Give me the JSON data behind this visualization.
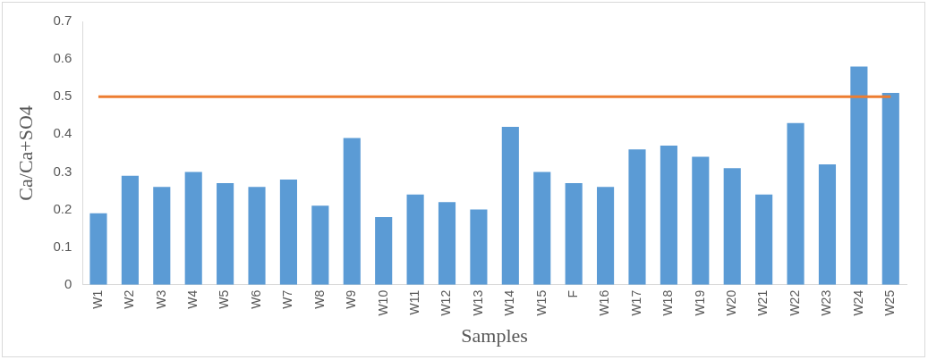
{
  "chart_data": {
    "type": "bar",
    "xlabel": "Samples",
    "ylabel": "Ca/Ca+SO4",
    "categories": [
      "W1",
      "W2",
      "W3",
      "W4",
      "W5",
      "W6",
      "W7",
      "W8",
      "W9",
      "W10",
      "W11",
      "W12",
      "W13",
      "W14",
      "W15",
      "F",
      "W16",
      "W17",
      "W18",
      "W19",
      "W20",
      "W21",
      "W22",
      "W23",
      "W24",
      "W25"
    ],
    "values": [
      0.19,
      0.29,
      0.26,
      0.3,
      0.27,
      0.26,
      0.28,
      0.21,
      0.39,
      0.18,
      0.24,
      0.22,
      0.2,
      0.42,
      0.3,
      0.27,
      0.26,
      0.36,
      0.37,
      0.34,
      0.31,
      0.24,
      0.43,
      0.32,
      0.58,
      0.51
    ],
    "color": "#5b9bd5",
    "ylim": [
      0,
      0.7
    ],
    "yticks": [
      {
        "value": 0,
        "label": "0"
      },
      {
        "value": 0.1,
        "label": "0.1"
      },
      {
        "value": 0.2,
        "label": "0.2"
      },
      {
        "value": 0.3,
        "label": "0.3"
      },
      {
        "value": 0.4,
        "label": "0.4"
      },
      {
        "value": 0.5,
        "label": "0.5"
      },
      {
        "value": 0.6,
        "label": "0.6"
      },
      {
        "value": 0.7,
        "label": "0.7"
      }
    ],
    "ref_lines": [
      {
        "axis": "y",
        "value": 0.5,
        "color": "#ed7d31"
      }
    ],
    "grid": false,
    "legend": false
  }
}
